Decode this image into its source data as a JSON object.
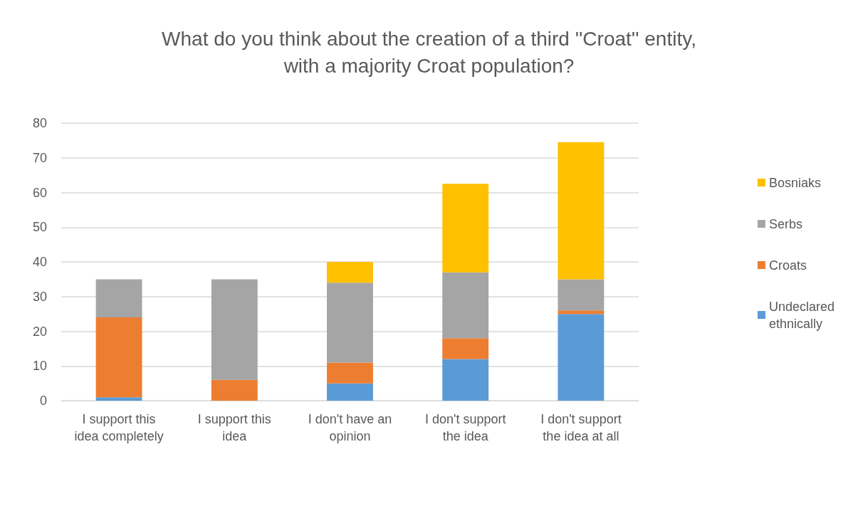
{
  "chart_data": {
    "type": "bar",
    "stacked": true,
    "title": "What do you think about the creation of a third ''Croat'' entity,\nwith a majority Croat population?",
    "categories": [
      "I support this\nidea completely",
      "I support this\nidea",
      "I don't have an\nopinion",
      "I don't support\nthe idea",
      "I don't support\nthe idea at all"
    ],
    "series": [
      {
        "name": "Undeclared\nethnically",
        "color": "#5b9bd5",
        "values": [
          1,
          0,
          5,
          12,
          25
        ]
      },
      {
        "name": "Croats",
        "color": "#ed7d31",
        "values": [
          23,
          6,
          6,
          6,
          1
        ]
      },
      {
        "name": "Serbs",
        "color": "#a5a5a5",
        "values": [
          11,
          29,
          23,
          19,
          9
        ]
      },
      {
        "name": "Bosniaks",
        "color": "#ffc000",
        "values": [
          0,
          0,
          6,
          25.5,
          39.5
        ]
      }
    ],
    "ylim": [
      0,
      80
    ],
    "yticks": [
      0,
      10,
      20,
      30,
      40,
      50,
      60,
      70,
      80
    ],
    "grid": "y",
    "legend": "right"
  }
}
